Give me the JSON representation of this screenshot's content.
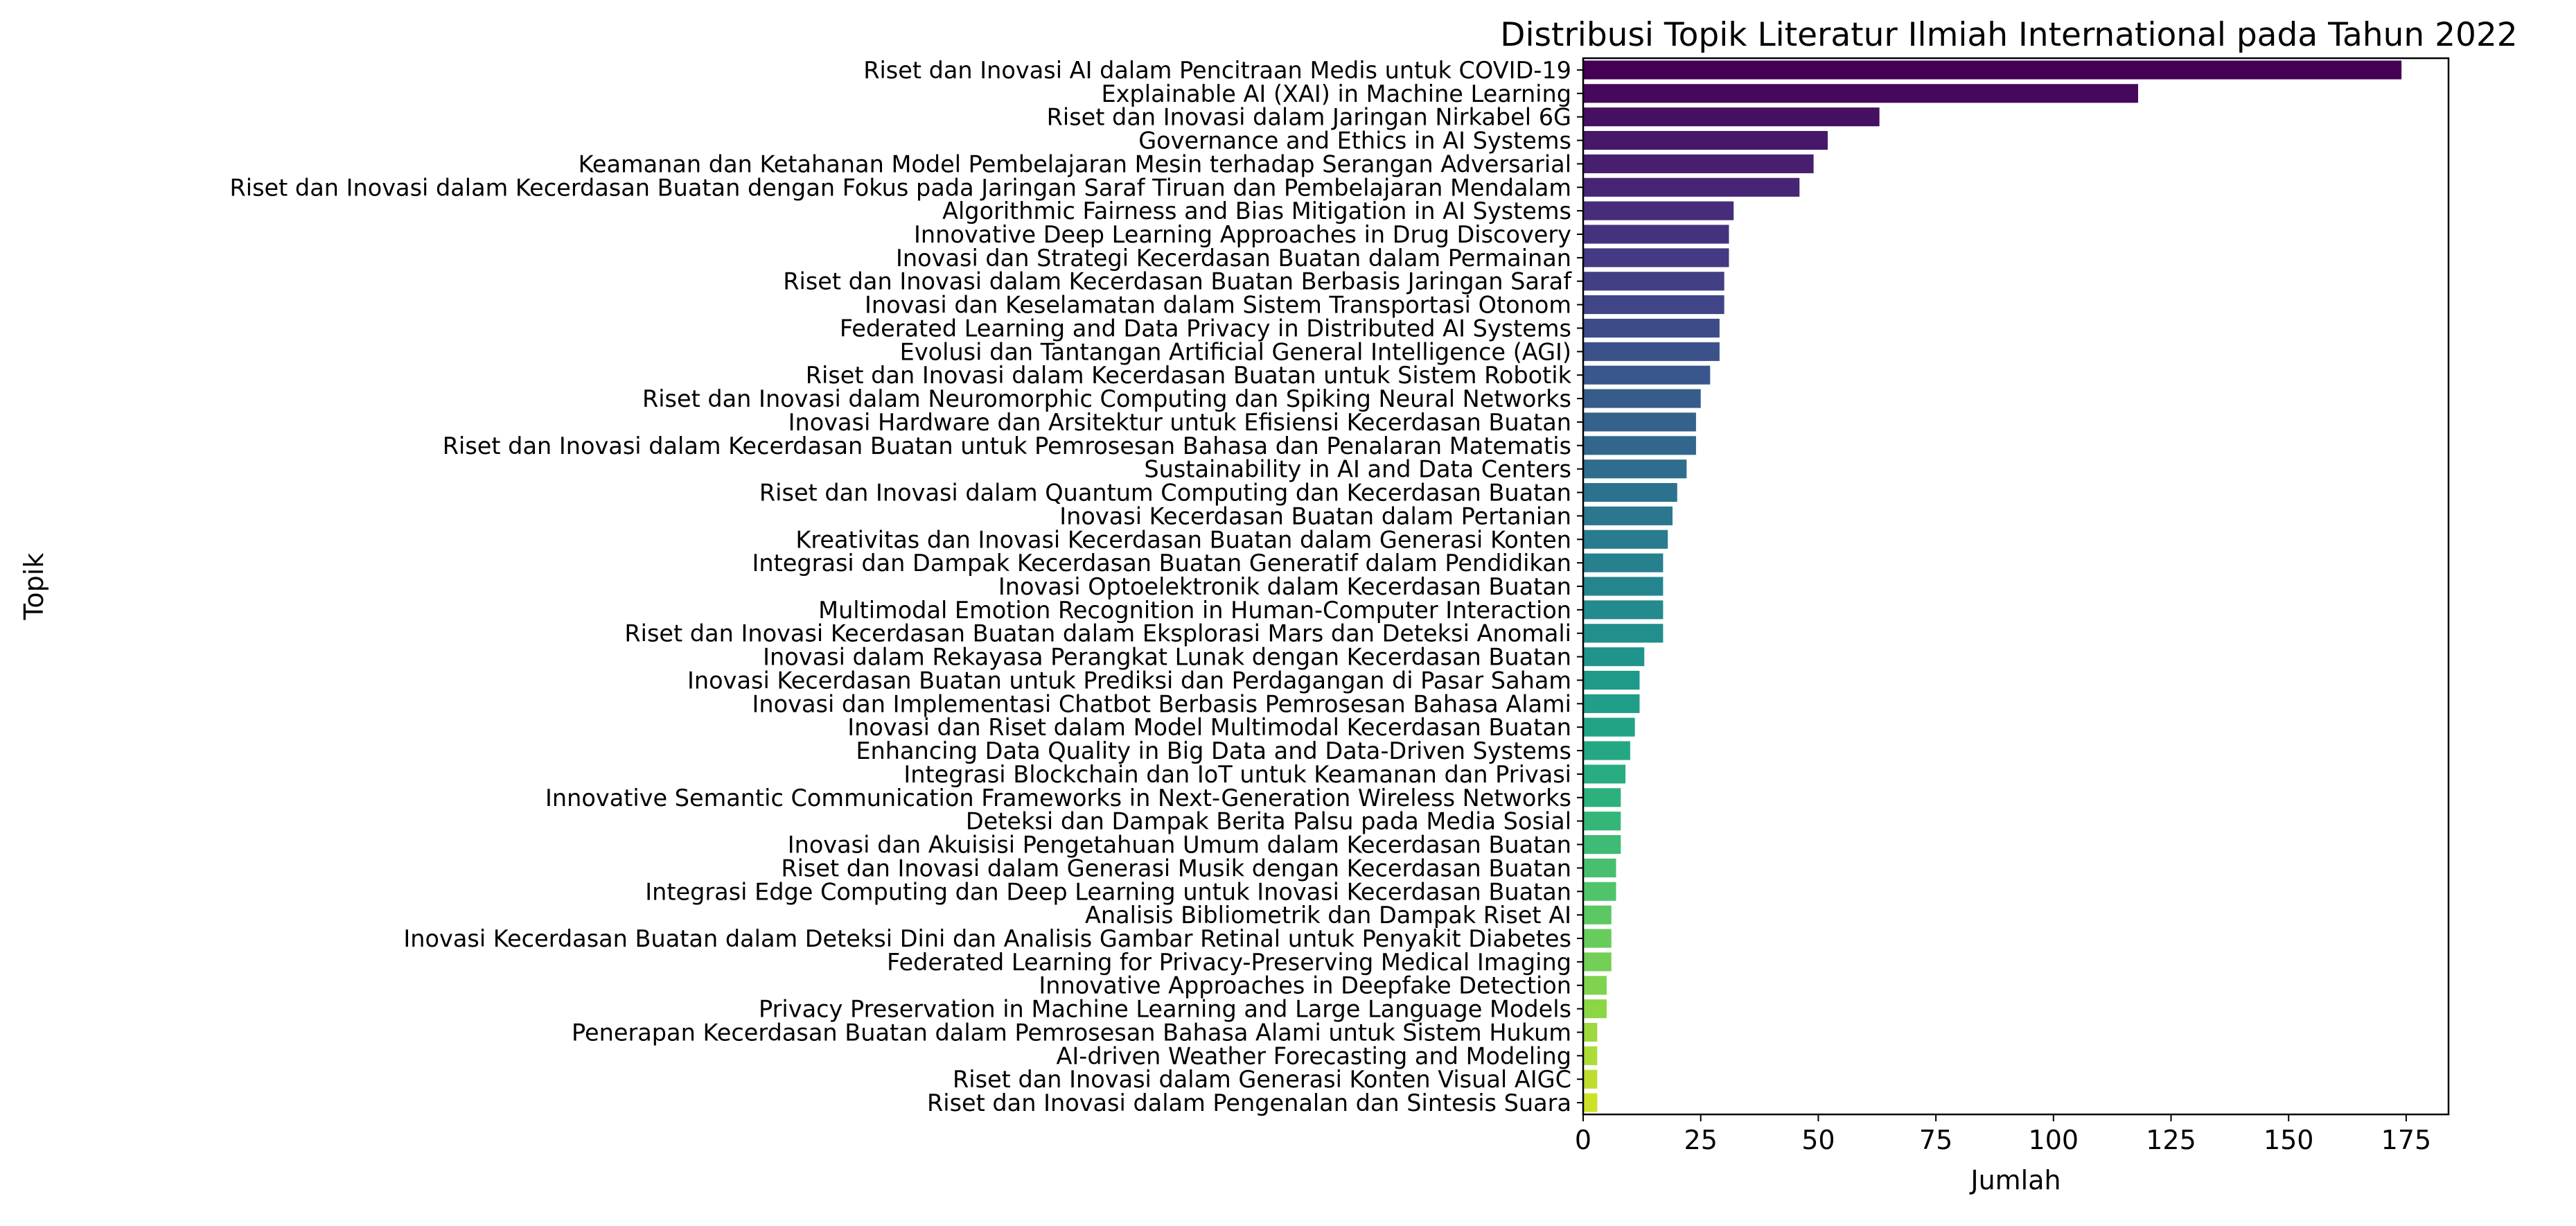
{
  "chart_data": {
    "type": "bar",
    "orientation": "horizontal",
    "title": "Distribusi Topik Literatur Ilmiah International pada Tahun 2022",
    "xlabel": "Jumlah",
    "ylabel": "Topik",
    "xlim": [
      0,
      184
    ],
    "xticks": [
      0,
      25,
      50,
      75,
      100,
      125,
      150,
      175
    ],
    "grid": false,
    "legend": "none",
    "colormap": "viridis",
    "categories": [
      "Riset dan Inovasi AI dalam Pencitraan Medis untuk COVID-19",
      "Explainable AI (XAI) in Machine Learning",
      "Riset dan Inovasi dalam Jaringan Nirkabel 6G",
      "Governance and Ethics in AI Systems",
      "Keamanan dan Ketahanan Model Pembelajaran Mesin terhadap Serangan Adversarial",
      "Riset dan Inovasi dalam Kecerdasan Buatan dengan Fokus pada Jaringan Saraf Tiruan dan Pembelajaran Mendalam",
      "Algorithmic Fairness and Bias Mitigation in AI Systems",
      "Innovative Deep Learning Approaches in Drug Discovery",
      "Inovasi dan Strategi Kecerdasan Buatan dalam Permainan",
      "Riset dan Inovasi dalam Kecerdasan Buatan Berbasis Jaringan Saraf",
      "Inovasi dan Keselamatan dalam Sistem Transportasi Otonom",
      "Federated Learning and Data Privacy in Distributed AI Systems",
      "Evolusi dan Tantangan Artificial General Intelligence (AGI)",
      "Riset dan Inovasi dalam Kecerdasan Buatan untuk Sistem Robotik",
      "Riset dan Inovasi dalam Neuromorphic Computing dan Spiking Neural Networks",
      "Inovasi Hardware dan Arsitektur untuk Efisiensi Kecerdasan Buatan",
      "Riset dan Inovasi dalam Kecerdasan Buatan untuk Pemrosesan Bahasa dan Penalaran Matematis",
      "Sustainability in AI and Data Centers",
      "Riset dan Inovasi dalam Quantum Computing dan Kecerdasan Buatan",
      "Inovasi Kecerdasan Buatan dalam Pertanian",
      "Kreativitas dan Inovasi Kecerdasan Buatan dalam Generasi Konten",
      "Integrasi dan Dampak Kecerdasan Buatan Generatif dalam Pendidikan",
      "Inovasi Optoelektronik dalam Kecerdasan Buatan",
      "Multimodal Emotion Recognition in Human-Computer Interaction",
      "Riset dan Inovasi Kecerdasan Buatan dalam Eksplorasi Mars dan Deteksi Anomali",
      "Inovasi dalam Rekayasa Perangkat Lunak dengan Kecerdasan Buatan",
      "Inovasi Kecerdasan Buatan untuk Prediksi dan Perdagangan di Pasar Saham",
      "Inovasi dan Implementasi Chatbot Berbasis Pemrosesan Bahasa Alami",
      "Inovasi dan Riset dalam Model Multimodal Kecerdasan Buatan",
      "Enhancing Data Quality in Big Data and Data-Driven Systems",
      "Integrasi Blockchain dan IoT untuk Keamanan dan Privasi",
      "Innovative Semantic Communication Frameworks in Next-Generation Wireless Networks",
      "Deteksi dan Dampak Berita Palsu pada Media Sosial",
      "Inovasi dan Akuisisi Pengetahuan Umum dalam Kecerdasan Buatan",
      "Riset dan Inovasi dalam Generasi Musik dengan Kecerdasan Buatan",
      "Integrasi Edge Computing dan Deep Learning untuk Inovasi Kecerdasan Buatan",
      "Analisis Bibliometrik dan Dampak Riset AI",
      "Inovasi Kecerdasan Buatan dalam Deteksi Dini dan Analisis Gambar Retinal untuk Penyakit Diabetes",
      "Federated Learning for Privacy-Preserving Medical Imaging",
      "Innovative Approaches in Deepfake Detection",
      "Privacy Preservation in Machine Learning and Large Language Models",
      "Penerapan Kecerdasan Buatan dalam Pemrosesan Bahasa Alami untuk Sistem Hukum",
      "AI-driven Weather Forecasting and Modeling",
      "Riset dan Inovasi dalam Generasi Konten Visual AIGC",
      "Riset dan Inovasi dalam Pengenalan dan Sintesis Suara"
    ],
    "values": [
      174,
      118,
      63,
      52,
      49,
      46,
      32,
      31,
      31,
      30,
      30,
      29,
      29,
      27,
      25,
      24,
      24,
      22,
      20,
      19,
      18,
      17,
      17,
      17,
      17,
      13,
      12,
      12,
      11,
      10,
      9,
      8,
      8,
      8,
      7,
      7,
      6,
      6,
      6,
      5,
      5,
      3,
      3,
      3,
      3
    ]
  }
}
